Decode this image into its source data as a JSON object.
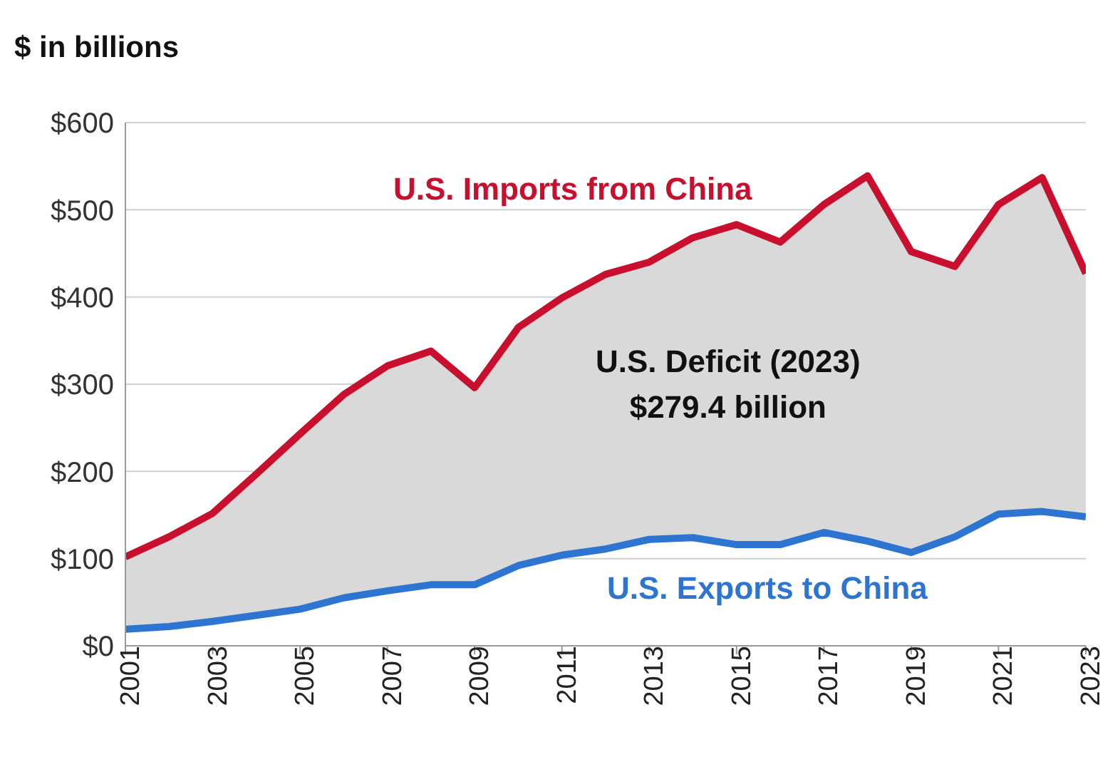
{
  "chart_data": {
    "type": "line",
    "ylabel": "$ in billions",
    "x": [
      2001,
      2002,
      2003,
      2004,
      2005,
      2006,
      2007,
      2008,
      2009,
      2010,
      2011,
      2012,
      2013,
      2014,
      2015,
      2016,
      2017,
      2018,
      2019,
      2020,
      2021,
      2022,
      2023
    ],
    "series": [
      {
        "name": "U.S. Imports from China",
        "color": "#c8102e",
        "values": [
          102,
          125,
          152,
          197,
          243,
          288,
          321,
          338,
          296,
          365,
          399,
          426,
          440,
          468,
          483,
          463,
          506,
          539,
          452,
          435,
          506,
          537,
          427
        ],
        "lower": [
          19,
          22,
          28,
          35,
          42,
          55,
          63,
          70,
          70,
          92,
          104,
          111,
          122,
          124,
          116,
          116,
          130,
          120,
          107,
          125,
          151,
          154,
          148
        ],
        "upper": [
          102,
          125,
          152,
          197,
          243,
          288,
          321,
          338,
          296,
          365,
          399,
          426,
          440,
          468,
          483,
          463,
          506,
          539,
          452,
          435,
          506,
          537,
          427
        ]
      },
      {
        "name": "U.S. Exports to China",
        "color": "#2e75d1",
        "values": [
          19,
          22,
          28,
          35,
          42,
          55,
          63,
          70,
          70,
          92,
          104,
          111,
          122,
          124,
          116,
          116,
          130,
          120,
          107,
          125,
          151,
          154,
          148
        ]
      }
    ],
    "annotations": [
      "U.S. Deficit (2023)\n$279.4 billion"
    ],
    "xlim": [
      2001,
      2023
    ],
    "xticks": [
      2001,
      2003,
      2005,
      2007,
      2009,
      2011,
      2013,
      2015,
      2017,
      2019,
      2021,
      2023
    ],
    "ylim": [
      0,
      600
    ],
    "yticks": [
      {
        "value": 0,
        "label": "$0"
      },
      {
        "value": 100,
        "label": "$100"
      },
      {
        "value": 200,
        "label": "$200"
      },
      {
        "value": 300,
        "label": "$300"
      },
      {
        "value": 400,
        "label": "$400"
      },
      {
        "value": 500,
        "label": "$500"
      },
      {
        "value": 600,
        "label": "$600"
      }
    ],
    "grid": "y",
    "legend": false,
    "marker": "none",
    "line_style": "solid"
  }
}
